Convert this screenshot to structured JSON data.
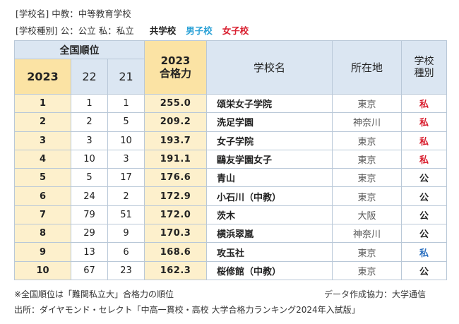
{
  "legend": {
    "line1": "[学校名] 中教：中等教育学校",
    "line2_prefix": "[学校種別] 公：公立  私：私立",
    "co_ed": "共学校",
    "boys": "男子校",
    "girls": "女子校"
  },
  "headers": {
    "national_rank": "全国順位",
    "year_2023": "2023",
    "year_22": "22",
    "year_21": "21",
    "score_line1": "2023",
    "score_line2": "合格力",
    "school_name": "学校名",
    "location": "所在地",
    "type_line1": "学校",
    "type_line2": "種別"
  },
  "rows": [
    {
      "r23": "1",
      "r22": "1",
      "r21": "1",
      "score": "255.0",
      "name": "頌栄女子学院",
      "loc": "東京",
      "type": "私",
      "kind": "girls"
    },
    {
      "r23": "2",
      "r22": "2",
      "r21": "5",
      "score": "209.2",
      "name": "洗足学園",
      "loc": "神奈川",
      "type": "私",
      "kind": "girls"
    },
    {
      "r23": "3",
      "r22": "3",
      "r21": "10",
      "score": "193.7",
      "name": "女子学院",
      "loc": "東京",
      "type": "私",
      "kind": "girls"
    },
    {
      "r23": "4",
      "r22": "10",
      "r21": "3",
      "score": "191.1",
      "name": "鷗友学園女子",
      "loc": "東京",
      "type": "私",
      "kind": "girls"
    },
    {
      "r23": "5",
      "r22": "5",
      "r21": "17",
      "score": "176.6",
      "name": "青山",
      "loc": "東京",
      "type": "公",
      "kind": "co"
    },
    {
      "r23": "6",
      "r22": "24",
      "r21": "2",
      "score": "172.9",
      "name": "小石川（中教）",
      "loc": "東京",
      "type": "公",
      "kind": "co"
    },
    {
      "r23": "7",
      "r22": "79",
      "r21": "51",
      "score": "172.0",
      "name": "茨木",
      "loc": "大阪",
      "type": "公",
      "kind": "co"
    },
    {
      "r23": "8",
      "r22": "29",
      "r21": "9",
      "score": "170.3",
      "name": "横浜翠嵐",
      "loc": "神奈川",
      "type": "公",
      "kind": "co"
    },
    {
      "r23": "9",
      "r22": "13",
      "r21": "6",
      "score": "168.6",
      "name": "攻玉社",
      "loc": "東京",
      "type": "私",
      "kind": "boys"
    },
    {
      "r23": "10",
      "r22": "67",
      "r21": "23",
      "score": "162.3",
      "name": "桜修館（中教）",
      "loc": "東京",
      "type": "公",
      "kind": "co"
    }
  ],
  "notes": {
    "left": "※全国順位は「難関私立大」合格力の順位",
    "right": "データ作成協力：大学通信",
    "source": "出所：ダイヤモンド・セレクト「中高一貫校・高校 大学合格力ランキング2024年入試版」"
  },
  "colors": {
    "header_blue": "#dbe6f2",
    "header_gold": "#fbe3a4",
    "cell_gold": "#fdf0cc",
    "girls_red": "#d92030",
    "boys_blue": "#2a6fc0",
    "legend_boys": "#2aa1d6"
  }
}
